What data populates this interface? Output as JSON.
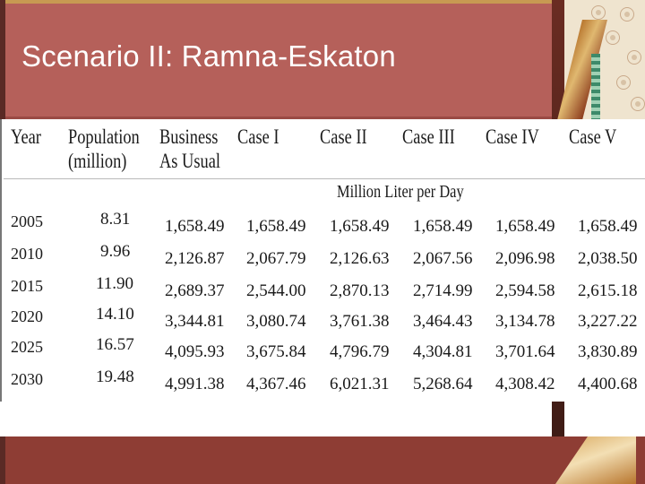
{
  "slide": {
    "title": "Scenario II: Ramna-Eskaton"
  },
  "table": {
    "headers": {
      "year": "Year",
      "population_1": "Population",
      "population_2": "(million)",
      "bau_1": "Business",
      "bau_2": "As Usual",
      "case1": "Case I",
      "case2": "Case II",
      "case3": "Case III",
      "case4": "Case IV",
      "case5": "Case V"
    },
    "unit_label": "Million Liter per Day",
    "rows": [
      {
        "year": "2005",
        "population": "8.31",
        "values": [
          "1,658.49",
          "1,658.49",
          "1,658.49",
          "1,658.49",
          "1,658.49",
          "1,658.49"
        ]
      },
      {
        "year": "2010",
        "population": "9.96",
        "values": [
          "2,126.87",
          "2,067.79",
          "2,126.63",
          "2,067.56",
          "2,096.98",
          "2,038.50"
        ]
      },
      {
        "year": "2015",
        "population": "11.90",
        "values": [
          "2,689.37",
          "2,544.00",
          "2,870.13",
          "2,714.99",
          "2,594.58",
          "2,615.18"
        ]
      },
      {
        "year": "2020",
        "population": "14.10",
        "values": [
          "3,344.81",
          "3,080.74",
          "3,761.38",
          "3,464.43",
          "3,134.78",
          "3,227.22"
        ]
      },
      {
        "year": "2025",
        "population": "16.57",
        "values": [
          "4,095.93",
          "3,675.84",
          "4,796.79",
          "4,304.81",
          "3,701.64",
          "3,830.89"
        ]
      },
      {
        "year": "2030",
        "population": "19.48",
        "values": [
          "4,991.38",
          "4,367.46",
          "6,021.31",
          "5,268.64",
          "4,308.42",
          "4,400.68"
        ]
      }
    ]
  },
  "colors": {
    "title_band": "#b5605a",
    "bottom_band": "#8e3d34",
    "title_text": "#ffffff"
  }
}
